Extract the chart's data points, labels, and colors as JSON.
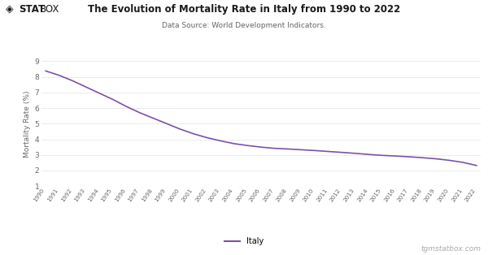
{
  "title": "The Evolution of Mortality Rate in Italy from 1990 to 2022",
  "subtitle": "Data Source: World Development Indicators.",
  "ylabel": "Mortality Rate (%)",
  "watermark": "tgmstatbox.com",
  "legend_label": "Italy",
  "line_color": "#7B52A6",
  "background_color": "#ffffff",
  "grid_color": "#e8e8e8",
  "years": [
    1990,
    1991,
    1992,
    1993,
    1994,
    1995,
    1996,
    1997,
    1998,
    1999,
    2000,
    2001,
    2002,
    2003,
    2004,
    2005,
    2006,
    2007,
    2008,
    2009,
    2010,
    2011,
    2012,
    2013,
    2014,
    2015,
    2016,
    2017,
    2018,
    2019,
    2020,
    2021,
    2022
  ],
  "values": [
    8.38,
    8.1,
    7.75,
    7.35,
    6.95,
    6.55,
    6.1,
    5.7,
    5.35,
    5.0,
    4.65,
    4.35,
    4.1,
    3.9,
    3.72,
    3.6,
    3.5,
    3.42,
    3.38,
    3.33,
    3.28,
    3.22,
    3.16,
    3.1,
    3.03,
    2.97,
    2.93,
    2.88,
    2.82,
    2.75,
    2.65,
    2.52,
    2.32
  ],
  "ylim": [
    1,
    9
  ],
  "yticks": [
    1,
    2,
    3,
    4,
    5,
    6,
    7,
    8,
    9
  ]
}
